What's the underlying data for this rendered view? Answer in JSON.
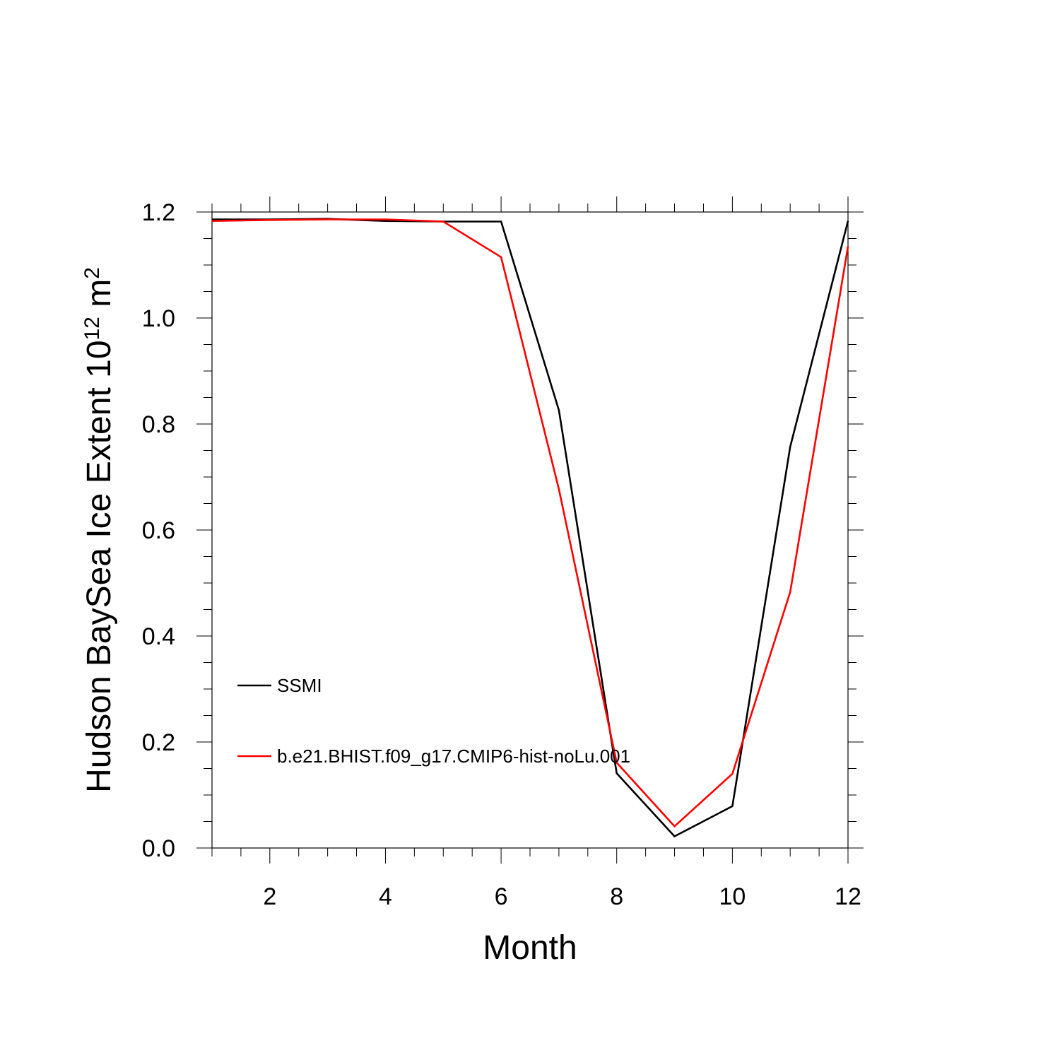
{
  "chart_data": {
    "type": "line",
    "xlabel": "Month",
    "ylabel_main": "Hudson BaySea Ice Extent 10",
    "ylabel_exp": "12",
    "ylabel_unit": " m",
    "ylabel_unit_exp": "2",
    "xlim": [
      1,
      12
    ],
    "ylim": [
      0.0,
      1.2
    ],
    "xticks": [
      2,
      4,
      6,
      8,
      10,
      12
    ],
    "xtick_labels": [
      "2",
      "4",
      "6",
      "8",
      "10",
      "12"
    ],
    "yticks": [
      0.0,
      0.2,
      0.4,
      0.6,
      0.8,
      1.0,
      1.2
    ],
    "ytick_labels": [
      "0.0",
      "0.2",
      "0.4",
      "0.6",
      "0.8",
      "1.0",
      "1.2"
    ],
    "x": [
      1,
      2,
      3,
      4,
      5,
      6,
      7,
      8,
      9,
      10,
      11,
      12
    ],
    "series": [
      {
        "name": "SSMI",
        "color": "#000000",
        "values": [
          1.186,
          1.186,
          1.187,
          1.183,
          1.182,
          1.182,
          0.826,
          0.141,
          0.022,
          0.079,
          0.757,
          1.183
        ]
      },
      {
        "name": "b.e21.BHIST.f09_g17.CMIP6-hist-noLu.001",
        "color": "#ff0000",
        "values": [
          1.183,
          1.185,
          1.186,
          1.186,
          1.182,
          1.115,
          0.677,
          0.161,
          0.041,
          0.14,
          0.483,
          1.135
        ]
      }
    ],
    "legend_position": "lower-left",
    "grid": false
  }
}
